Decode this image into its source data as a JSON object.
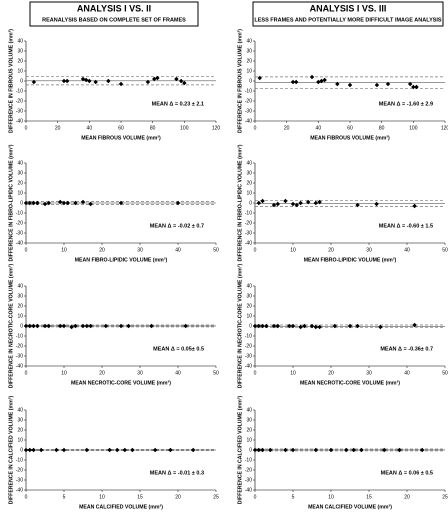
{
  "headers": [
    {
      "title": "ANALYSIS I VS. II",
      "subtitle": "REANALYSIS BASED ON COMPLETE SET OF FRAMES"
    },
    {
      "title": "ANALYSIS I VS. III",
      "subtitle": "LESS FRAMES AND POTENTIALLY MORE DIFFICULT IMAGE ANALYSIS"
    }
  ],
  "chart_data": [
    {
      "type": "scatter",
      "xlabel": "MEAN FIBROUS VOLUME (mm³)",
      "ylabel": "DIFFERENCE IN FIBROUS VOLUME (mm³)",
      "annotation": "MEAN Δ = 0.23 ± 2.1",
      "x": [
        5,
        24,
        26,
        36,
        38,
        40,
        44,
        52,
        60,
        77,
        81,
        83,
        95,
        98,
        100
      ],
      "values": [
        -1,
        0,
        0,
        2,
        1,
        0,
        -1,
        0,
        -3,
        -1,
        2,
        3,
        2,
        0,
        -2
      ],
      "mean_line": 0.23,
      "limit_lines": [
        4.3,
        -3.9
      ],
      "color": "#000000",
      "line_color": "#777777",
      "xlim": [
        0,
        120
      ],
      "xticks": [
        0,
        20,
        40,
        60,
        80,
        100,
        120
      ],
      "ylim": [
        -40,
        40
      ],
      "yticks": [
        -40,
        -30,
        -20,
        -10,
        0,
        10,
        20,
        30,
        40
      ]
    },
    {
      "type": "scatter",
      "xlabel": "MEAN FIBROUS VOLUME (mm³)",
      "ylabel": "DIFFERENCE IN FIBROUS VOLUME (mm³)",
      "annotation": "MEAN Δ = -1.60 ± 2.9",
      "x": [
        3,
        24,
        26,
        36,
        40,
        42,
        44,
        52,
        60,
        77,
        84,
        98,
        100,
        102
      ],
      "values": [
        3,
        -1,
        -1,
        4,
        -1,
        0,
        1,
        -3,
        -4,
        -4,
        -3,
        -3,
        -6,
        -6
      ],
      "mean_line": -1.6,
      "limit_lines": [
        4.1,
        -7.3
      ],
      "color": "#000000",
      "line_color": "#777777",
      "xlim": [
        0,
        120
      ],
      "xticks": [
        0,
        20,
        40,
        60,
        80,
        100,
        120
      ],
      "ylim": [
        -40,
        40
      ],
      "yticks": [
        -40,
        -30,
        -20,
        -10,
        0,
        10,
        20,
        30,
        40
      ]
    },
    {
      "type": "scatter",
      "xlabel": "MEAN FIBRO-LIPIDIC VOLUME (mm³)",
      "ylabel": "DIFFERENCE IN FIBRO-LIPIDIC VOLUME (mm³)",
      "annotation": "MEAN Δ = -0.02 ± 0.7",
      "x": [
        0,
        1,
        2,
        3,
        5,
        6,
        9,
        10,
        11,
        13,
        15,
        17,
        25,
        40
      ],
      "values": [
        0,
        0,
        0,
        0,
        -1,
        0,
        1,
        0,
        0,
        0,
        1,
        -1,
        0,
        0
      ],
      "mean_line": -0.02,
      "limit_lines": [
        1.4,
        -1.4
      ],
      "color": "#000000",
      "line_color": "#777777",
      "xlim": [
        0,
        50
      ],
      "xticks": [
        0,
        10,
        20,
        30,
        40,
        50
      ],
      "ylim": [
        -40,
        40
      ],
      "yticks": [
        -40,
        -30,
        -20,
        -10,
        0,
        10,
        20,
        30,
        40
      ]
    },
    {
      "type": "scatter",
      "xlabel": "MEAN FIBRO-LIPIDIC VOLUME (mm³)",
      "ylabel": "DIFFERENCE IN FIBRO-LIPIDIC VOLUME (mm³)",
      "annotation": "MEAN Δ = -0.60 ± 1.5",
      "x": [
        1,
        2,
        5,
        6,
        8,
        10,
        11,
        12,
        14,
        16,
        17,
        27,
        32,
        42
      ],
      "values": [
        0,
        2,
        -2,
        -1,
        2,
        -1,
        -2,
        0,
        1,
        0,
        1,
        -2,
        -1,
        -3
      ],
      "mean_line": -0.6,
      "limit_lines": [
        2.3,
        -3.5
      ],
      "color": "#000000",
      "line_color": "#777777",
      "xlim": [
        0,
        50
      ],
      "xticks": [
        0,
        10,
        20,
        30,
        40,
        50
      ],
      "ylim": [
        -40,
        40
      ],
      "yticks": [
        -40,
        -30,
        -20,
        -10,
        0,
        10,
        20,
        30,
        40
      ]
    },
    {
      "type": "scatter",
      "xlabel": "MEAN NECROTIC-CORE VOLUME (mm³)",
      "ylabel": "DIFFERENCE IN NECROTIC-CORE VOLUME (mm³)",
      "annotation": "MEAN Δ = 0.05± 0.5",
      "x": [
        0,
        1,
        2,
        3,
        5,
        6,
        9,
        10,
        12,
        13,
        15,
        16,
        17,
        21,
        25,
        27,
        33,
        42
      ],
      "values": [
        0,
        0,
        0,
        0,
        0,
        0,
        0,
        0,
        -1,
        0,
        0,
        0,
        0,
        0,
        0,
        0,
        0,
        0
      ],
      "mean_line": 0.05,
      "limit_lines": [
        1,
        -0.9
      ],
      "color": "#000000",
      "line_color": "#777777",
      "xlim": [
        0,
        50
      ],
      "xticks": [
        0,
        10,
        20,
        30,
        40,
        50
      ],
      "ylim": [
        -40,
        40
      ],
      "yticks": [
        -40,
        -30,
        -20,
        -10,
        0,
        10,
        20,
        30,
        40
      ]
    },
    {
      "type": "scatter",
      "xlabel": "MEAN NECROTIC-CORE VOLUME (mm³)",
      "ylabel": "DIFFERENCE IN NECROTIC-CORE VOLUME (mm³)",
      "annotation": "MEAN Δ = -0.36± 0.7",
      "x": [
        0,
        1,
        2,
        3,
        5,
        6,
        9,
        10,
        12,
        13,
        15,
        16,
        17,
        21,
        25,
        27,
        33,
        42
      ],
      "values": [
        0,
        0,
        0,
        0,
        0,
        0,
        0,
        0,
        -1,
        0,
        0,
        -1,
        -1,
        0,
        0,
        0,
        -1,
        1
      ],
      "mean_line": -0.36,
      "limit_lines": [
        1,
        -1.7
      ],
      "color": "#000000",
      "line_color": "#777777",
      "xlim": [
        0,
        50
      ],
      "xticks": [
        0,
        10,
        20,
        30,
        40,
        50
      ],
      "ylim": [
        -40,
        40
      ],
      "yticks": [
        -40,
        -30,
        -20,
        -10,
        0,
        10,
        20,
        30,
        40
      ]
    },
    {
      "type": "scatter",
      "xlabel": "MEAN CALCIFIED VOLUME (mm³)",
      "ylabel": "DIFFERENCE IN CALCIFIED VOLUME (mm³)",
      "annotation": "MEAN Δ = -0.01 ± 0.3",
      "x": [
        0,
        0.5,
        1,
        2,
        4,
        5,
        8,
        11,
        12,
        13,
        14,
        17,
        19,
        22
      ],
      "values": [
        0,
        0,
        0,
        0,
        0,
        0,
        0,
        0,
        0,
        0,
        0,
        0,
        0,
        0
      ],
      "mean_line": -0.01,
      "limit_lines": [
        0.6,
        -0.6
      ],
      "color": "#000000",
      "line_color": "#777777",
      "xlim": [
        0,
        25
      ],
      "xticks": [
        0,
        5,
        10,
        15,
        20,
        25
      ],
      "ylim": [
        -40,
        40
      ],
      "yticks": [
        -40,
        -30,
        -20,
        -10,
        0,
        10,
        20,
        30,
        40
      ]
    },
    {
      "type": "scatter",
      "xlabel": "MEAN CALCIFIED VOLUME (mm³)",
      "ylabel": "DIFFERENCE IN CALCIFIED VOLUME (mm³)",
      "annotation": "MEAN Δ = 0.06 ± 0.5",
      "x": [
        0,
        0.5,
        1,
        2,
        4,
        5,
        8,
        10,
        12,
        13,
        14,
        17,
        19,
        22
      ],
      "values": [
        0,
        0,
        0,
        0,
        0,
        0,
        0,
        0,
        0,
        0,
        0,
        0,
        0,
        0
      ],
      "mean_line": 0.06,
      "limit_lines": [
        1,
        -0.9
      ],
      "color": "#000000",
      "line_color": "#777777",
      "xlim": [
        0,
        25
      ],
      "xticks": [
        0,
        5,
        10,
        15,
        20,
        25
      ],
      "ylim": [
        -40,
        40
      ],
      "yticks": [
        -40,
        -30,
        -20,
        -10,
        0,
        10,
        20,
        30,
        40
      ]
    }
  ]
}
